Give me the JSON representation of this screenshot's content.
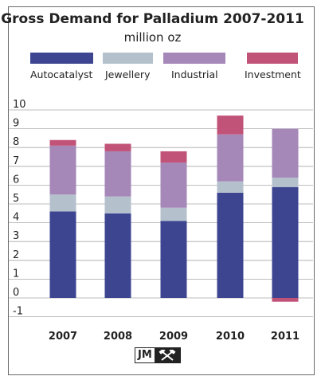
{
  "chart_data": {
    "type": "bar",
    "stacked": true,
    "title": "Gross Demand for Palladium 2007-2011",
    "subtitle": "million oz",
    "categories": [
      "2007",
      "2008",
      "2009",
      "2010",
      "2011"
    ],
    "series": [
      {
        "name": "Autocatalyst",
        "color": "#3d4591",
        "values": [
          4.6,
          4.5,
          4.1,
          5.6,
          5.9
        ]
      },
      {
        "name": "Jewellery",
        "color": "#b4c1cd",
        "values": [
          0.9,
          0.9,
          0.7,
          0.6,
          0.5
        ]
      },
      {
        "name": "Industrial",
        "color": "#a587b8",
        "values": [
          2.6,
          2.4,
          2.4,
          2.5,
          2.6
        ]
      },
      {
        "name": "Investment",
        "color": "#c25378",
        "values": [
          0.3,
          0.4,
          0.6,
          1.0,
          -0.2
        ]
      }
    ],
    "ylim": [
      -1,
      10
    ],
    "yticks": [
      "-1",
      "0",
      "1",
      "2",
      "3",
      "4",
      "5",
      "6",
      "7",
      "8",
      "9",
      "10"
    ],
    "grid": true,
    "legend": "top"
  },
  "logo": {
    "text": "JM",
    "icon": "crossed-hammers-icon"
  }
}
